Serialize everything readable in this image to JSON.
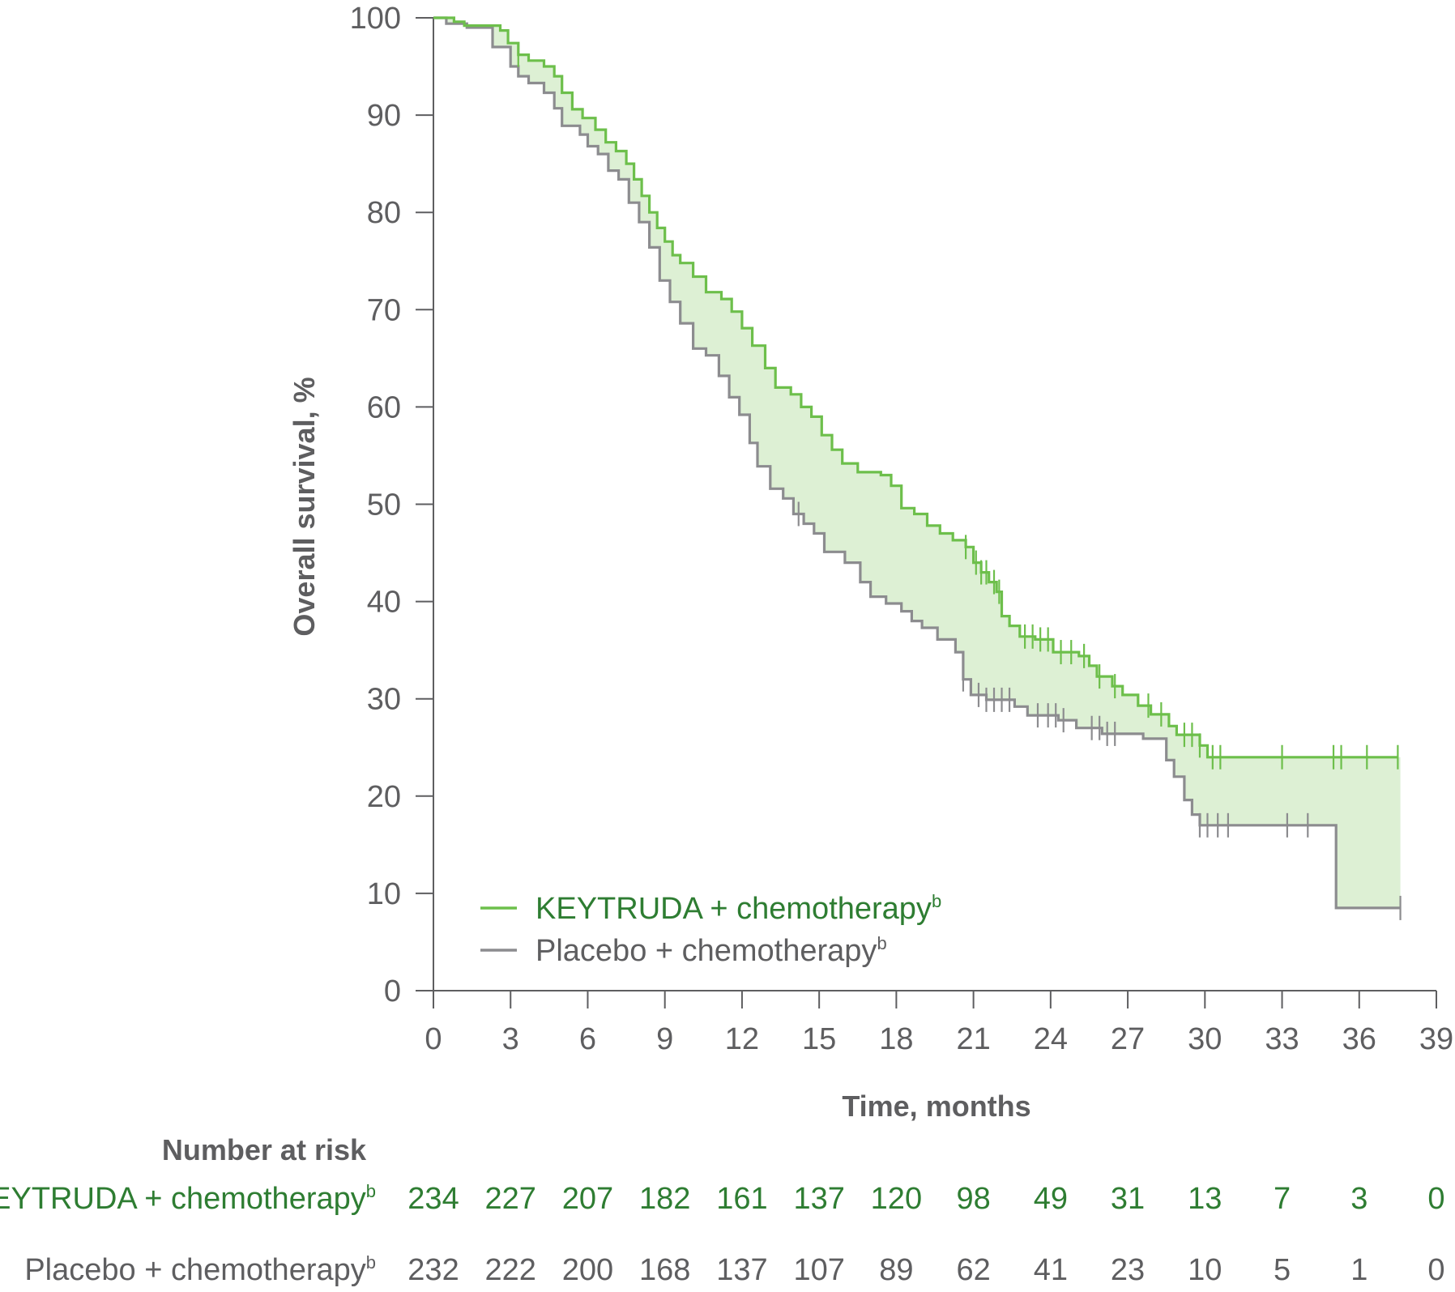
{
  "chart_data": {
    "type": "line",
    "subtype": "kaplan-meier",
    "title": "",
    "xlabel": "Time, months",
    "ylabel": "Overall survival, %",
    "xlim": [
      0,
      39
    ],
    "ylim": [
      0,
      100
    ],
    "x_ticks": [
      0,
      3,
      6,
      9,
      12,
      15,
      18,
      21,
      24,
      27,
      30,
      33,
      36,
      39
    ],
    "y_ticks": [
      0,
      10,
      20,
      30,
      40,
      50,
      60,
      70,
      80,
      90,
      100
    ],
    "legend_position": "bottom-left",
    "shade_between_series": true,
    "shade_color": "#ddf0d4",
    "series": [
      {
        "name": "KEYTRUDA + chemotherapy",
        "name_superscript": "b",
        "color": "#6dbf4b",
        "text_color": "#2e7d32",
        "points": [
          [
            0,
            100
          ],
          [
            0.8,
            99.6
          ],
          [
            1.2,
            99.2
          ],
          [
            2.6,
            98.7
          ],
          [
            2.9,
            97.4
          ],
          [
            3.3,
            96.2
          ],
          [
            3.7,
            95.6
          ],
          [
            4.3,
            95.0
          ],
          [
            4.7,
            94.0
          ],
          [
            5.0,
            92.3
          ],
          [
            5.4,
            90.6
          ],
          [
            5.8,
            89.7
          ],
          [
            6.3,
            88.5
          ],
          [
            6.7,
            87.2
          ],
          [
            7.1,
            86.3
          ],
          [
            7.5,
            85.0
          ],
          [
            7.8,
            83.4
          ],
          [
            8.1,
            81.7
          ],
          [
            8.4,
            80.0
          ],
          [
            8.7,
            78.4
          ],
          [
            9.0,
            77.0
          ],
          [
            9.3,
            75.6
          ],
          [
            9.6,
            74.8
          ],
          [
            10.1,
            73.4
          ],
          [
            10.6,
            71.8
          ],
          [
            11.2,
            71.1
          ],
          [
            11.6,
            69.8
          ],
          [
            12.0,
            68.1
          ],
          [
            12.4,
            66.3
          ],
          [
            12.9,
            64.0
          ],
          [
            13.3,
            62.0
          ],
          [
            13.9,
            61.3
          ],
          [
            14.3,
            60.0
          ],
          [
            14.7,
            59.0
          ],
          [
            15.1,
            57.1
          ],
          [
            15.5,
            55.6
          ],
          [
            15.9,
            54.2
          ],
          [
            16.5,
            53.3
          ],
          [
            17.4,
            53.0
          ],
          [
            17.8,
            51.9
          ],
          [
            18.2,
            49.6
          ],
          [
            18.7,
            49.0
          ],
          [
            19.2,
            47.8
          ],
          [
            19.7,
            47.0
          ],
          [
            20.2,
            46.3
          ],
          [
            20.7,
            45.6
          ],
          [
            21.0,
            44.0
          ],
          [
            21.3,
            43.0
          ],
          [
            21.6,
            42.0
          ],
          [
            21.9,
            41.0
          ],
          [
            22.1,
            38.5
          ],
          [
            22.4,
            37.5
          ],
          [
            22.8,
            36.4
          ],
          [
            23.4,
            36.1
          ],
          [
            24.1,
            34.8
          ],
          [
            25.1,
            34.4
          ],
          [
            25.5,
            33.4
          ],
          [
            25.8,
            32.3
          ],
          [
            26.4,
            31.3
          ],
          [
            26.8,
            30.4
          ],
          [
            27.4,
            29.3
          ],
          [
            27.9,
            28.4
          ],
          [
            28.6,
            27.2
          ],
          [
            28.9,
            26.3
          ],
          [
            29.8,
            25.2
          ],
          [
            30.1,
            24.0
          ],
          [
            37.5,
            24.0
          ]
        ],
        "censor_times": [
          3.3,
          20.7,
          21.1,
          21.3,
          21.5,
          21.8,
          22.0,
          23.0,
          23.3,
          23.6,
          23.9,
          24.4,
          24.8,
          25.3,
          25.9,
          26.5,
          27.8,
          28.3,
          29.2,
          29.5,
          29.8,
          30.3,
          30.6,
          33.0,
          35.0,
          35.3,
          36.3,
          37.5
        ]
      },
      {
        "name": "Placebo + chemotherapy",
        "name_superscript": "b",
        "color": "#8c8c8f",
        "text_color": "#5e5e60",
        "points": [
          [
            0,
            100
          ],
          [
            0.5,
            99.4
          ],
          [
            1.3,
            99.0
          ],
          [
            2.3,
            97.0
          ],
          [
            3.0,
            95.0
          ],
          [
            3.3,
            94.0
          ],
          [
            3.7,
            93.3
          ],
          [
            4.3,
            92.3
          ],
          [
            4.7,
            90.7
          ],
          [
            5.0,
            88.9
          ],
          [
            5.7,
            88.0
          ],
          [
            6.0,
            86.8
          ],
          [
            6.4,
            86.0
          ],
          [
            6.8,
            84.3
          ],
          [
            7.2,
            83.4
          ],
          [
            7.6,
            81.0
          ],
          [
            8.0,
            79.0
          ],
          [
            8.4,
            76.4
          ],
          [
            8.8,
            73.0
          ],
          [
            9.2,
            70.8
          ],
          [
            9.6,
            68.6
          ],
          [
            10.1,
            66.0
          ],
          [
            10.6,
            65.3
          ],
          [
            11.1,
            63.2
          ],
          [
            11.5,
            61.0
          ],
          [
            11.9,
            59.2
          ],
          [
            12.3,
            56.3
          ],
          [
            12.6,
            53.9
          ],
          [
            13.1,
            51.6
          ],
          [
            13.6,
            50.6
          ],
          [
            14.0,
            49.0
          ],
          [
            14.4,
            48.0
          ],
          [
            14.8,
            47.0
          ],
          [
            15.2,
            45.1
          ],
          [
            16.0,
            44.0
          ],
          [
            16.6,
            42.0
          ],
          [
            17.0,
            40.5
          ],
          [
            17.6,
            39.8
          ],
          [
            18.2,
            39.0
          ],
          [
            18.6,
            38.0
          ],
          [
            19.0,
            37.3
          ],
          [
            19.6,
            36.1
          ],
          [
            20.3,
            34.8
          ],
          [
            20.6,
            32.0
          ],
          [
            20.9,
            30.4
          ],
          [
            21.5,
            29.9
          ],
          [
            22.6,
            29.2
          ],
          [
            23.1,
            28.3
          ],
          [
            24.3,
            27.8
          ],
          [
            25.0,
            27.0
          ],
          [
            26.0,
            26.4
          ],
          [
            27.6,
            25.9
          ],
          [
            28.5,
            23.7
          ],
          [
            28.8,
            22.0
          ],
          [
            29.2,
            19.6
          ],
          [
            29.5,
            18.1
          ],
          [
            29.8,
            17.0
          ],
          [
            35.0,
            17.0
          ],
          [
            35.1,
            8.5
          ],
          [
            37.6,
            8.5
          ]
        ],
        "censor_times": [
          14.2,
          20.6,
          21.2,
          21.5,
          21.8,
          22.1,
          22.4,
          23.5,
          23.9,
          24.2,
          24.5,
          25.6,
          25.9,
          26.2,
          26.5,
          29.8,
          30.1,
          30.5,
          30.9,
          33.2,
          34.0,
          37.6
        ]
      }
    ]
  },
  "risk_table": {
    "title": "Number at risk",
    "times": [
      0,
      3,
      6,
      9,
      12,
      15,
      18,
      21,
      24,
      27,
      30,
      33,
      36,
      39
    ],
    "rows": [
      {
        "label": "KEYTRUDA + chemotherapy",
        "label_superscript": "b",
        "values": [
          "234",
          "227",
          "207",
          "182",
          "161",
          "137",
          "120",
          "98",
          "49",
          "31",
          "13",
          "7",
          "3",
          "0"
        ]
      },
      {
        "label": "Placebo + chemotherapy",
        "label_superscript": "b",
        "values": [
          "232",
          "222",
          "200",
          "168",
          "137",
          "107",
          "89",
          "62",
          "41",
          "23",
          "10",
          "5",
          "1",
          "0"
        ]
      }
    ]
  }
}
